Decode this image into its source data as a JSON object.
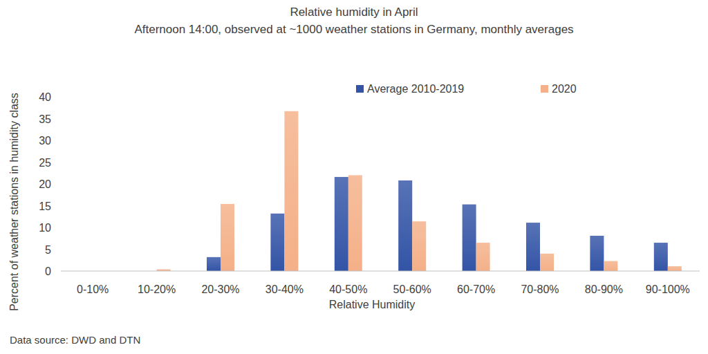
{
  "chart_data": {
    "type": "bar",
    "title": "Relative humidity in April",
    "subtitle": "Afternoon 14:00, observed at ~1000 weather stations in Germany, monthly averages",
    "x_label": "Relative Humidity",
    "y_label": "Percent of weather stations in humidity class",
    "source": "Data source: DWD and DTN",
    "categories": [
      "0-10%",
      "10-20%",
      "20-30%",
      "30-40%",
      "40-50%",
      "50-60%",
      "60-70%",
      "70-80%",
      "80-90%",
      "90-100%"
    ],
    "series": [
      {
        "name": "Average 2010-2019",
        "color": "#3354a6",
        "values": [
          0,
          0,
          3.2,
          13.2,
          21.6,
          20.8,
          15.3,
          11.1,
          8.1,
          6.5
        ]
      },
      {
        "name": "2020",
        "color": "#f4b088",
        "values": [
          0,
          0.4,
          15.4,
          36.7,
          22.0,
          11.4,
          6.5,
          4.0,
          2.3,
          1.1
        ]
      }
    ],
    "ylim": [
      0,
      40
    ],
    "yticks": [
      0,
      5,
      10,
      15,
      20,
      25,
      30,
      35,
      40
    ],
    "grid": false,
    "legend": "top"
  }
}
